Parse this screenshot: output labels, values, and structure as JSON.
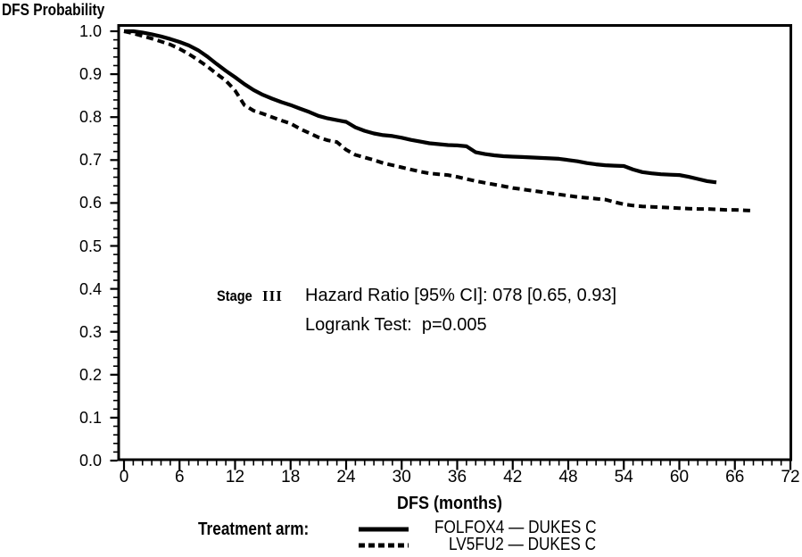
{
  "figure": {
    "background": "#ffffff",
    "ink_color": "#000000"
  },
  "chart_data": {
    "type": "line",
    "subtype": "kaplan-meier-survival",
    "ylabel": "DFS Probability",
    "xlabel": "DFS (months)",
    "xlim": [
      0,
      72
    ],
    "ylim": [
      0.0,
      1.0
    ],
    "grid": false,
    "x_tick_labels": [
      "0",
      "6",
      "12",
      "18",
      "24",
      "30",
      "36",
      "42",
      "48",
      "54",
      "60",
      "66",
      "72"
    ],
    "y_tick_labels": [
      "0.0",
      "0.1",
      "0.2",
      "0.3",
      "0.4",
      "0.5",
      "0.6",
      "0.7",
      "0.8",
      "0.9",
      "1.0"
    ],
    "x_minor_tick_step": 1,
    "y_minor_tick_step": 0.02,
    "legend_position": "bottom",
    "series": [
      {
        "name": "FOLFOX4 — DUKES C",
        "line_style": "solid",
        "points": [
          [
            0,
            1.0
          ],
          [
            1,
            1.0
          ],
          [
            2,
            0.997
          ],
          [
            3,
            0.993
          ],
          [
            4,
            0.988
          ],
          [
            5,
            0.982
          ],
          [
            6,
            0.975
          ],
          [
            7,
            0.967
          ],
          [
            8,
            0.956
          ],
          [
            9,
            0.941
          ],
          [
            10,
            0.924
          ],
          [
            11,
            0.908
          ],
          [
            12,
            0.893
          ],
          [
            13,
            0.877
          ],
          [
            14,
            0.863
          ],
          [
            15,
            0.852
          ],
          [
            16,
            0.843
          ],
          [
            17,
            0.835
          ],
          [
            18,
            0.828
          ],
          [
            19,
            0.82
          ],
          [
            20,
            0.812
          ],
          [
            21,
            0.803
          ],
          [
            22,
            0.797
          ],
          [
            23,
            0.793
          ],
          [
            24,
            0.789
          ],
          [
            25,
            0.776
          ],
          [
            26,
            0.768
          ],
          [
            27,
            0.762
          ],
          [
            28,
            0.758
          ],
          [
            29,
            0.756
          ],
          [
            30,
            0.752
          ],
          [
            31,
            0.747
          ],
          [
            32,
            0.743
          ],
          [
            33,
            0.739
          ],
          [
            34,
            0.737
          ],
          [
            35,
            0.735
          ],
          [
            36,
            0.734
          ],
          [
            37,
            0.732
          ],
          [
            38,
            0.718
          ],
          [
            39,
            0.714
          ],
          [
            40,
            0.711
          ],
          [
            41,
            0.709
          ],
          [
            42,
            0.708
          ],
          [
            43,
            0.707
          ],
          [
            44,
            0.706
          ],
          [
            45,
            0.705
          ],
          [
            46,
            0.704
          ],
          [
            47,
            0.703
          ],
          [
            48,
            0.7
          ],
          [
            49,
            0.697
          ],
          [
            50,
            0.693
          ],
          [
            51,
            0.69
          ],
          [
            52,
            0.688
          ],
          [
            53,
            0.687
          ],
          [
            54,
            0.686
          ],
          [
            55,
            0.678
          ],
          [
            56,
            0.672
          ],
          [
            57,
            0.669
          ],
          [
            58,
            0.667
          ],
          [
            59,
            0.666
          ],
          [
            60,
            0.665
          ],
          [
            61,
            0.661
          ],
          [
            62,
            0.656
          ],
          [
            63,
            0.651
          ],
          [
            64,
            0.648
          ]
        ]
      },
      {
        "name": "LV5FU2 — DUKES C",
        "line_style": "dashed",
        "points": [
          [
            0,
            1.0
          ],
          [
            1,
            0.995
          ],
          [
            2,
            0.989
          ],
          [
            3,
            0.983
          ],
          [
            4,
            0.976
          ],
          [
            5,
            0.969
          ],
          [
            6,
            0.959
          ],
          [
            7,
            0.947
          ],
          [
            8,
            0.933
          ],
          [
            9,
            0.918
          ],
          [
            10,
            0.901
          ],
          [
            11,
            0.885
          ],
          [
            12,
            0.862
          ],
          [
            13,
            0.828
          ],
          [
            14,
            0.815
          ],
          [
            15,
            0.808
          ],
          [
            16,
            0.8
          ],
          [
            17,
            0.792
          ],
          [
            18,
            0.785
          ],
          [
            19,
            0.773
          ],
          [
            20,
            0.763
          ],
          [
            21,
            0.753
          ],
          [
            22,
            0.746
          ],
          [
            23,
            0.742
          ],
          [
            24,
            0.724
          ],
          [
            25,
            0.712
          ],
          [
            26,
            0.706
          ],
          [
            27,
            0.7
          ],
          [
            28,
            0.693
          ],
          [
            29,
            0.688
          ],
          [
            30,
            0.683
          ],
          [
            31,
            0.678
          ],
          [
            32,
            0.673
          ],
          [
            33,
            0.669
          ],
          [
            34,
            0.667
          ],
          [
            35,
            0.665
          ],
          [
            36,
            0.661
          ],
          [
            37,
            0.656
          ],
          [
            38,
            0.651
          ],
          [
            39,
            0.647
          ],
          [
            40,
            0.643
          ],
          [
            41,
            0.639
          ],
          [
            42,
            0.635
          ],
          [
            43,
            0.632
          ],
          [
            44,
            0.629
          ],
          [
            45,
            0.626
          ],
          [
            46,
            0.623
          ],
          [
            47,
            0.62
          ],
          [
            48,
            0.617
          ],
          [
            49,
            0.614
          ],
          [
            50,
            0.612
          ],
          [
            51,
            0.61
          ],
          [
            52,
            0.608
          ],
          [
            53,
            0.602
          ],
          [
            54,
            0.597
          ],
          [
            55,
            0.594
          ],
          [
            56,
            0.592
          ],
          [
            57,
            0.591
          ],
          [
            58,
            0.59
          ],
          [
            59,
            0.589
          ],
          [
            60,
            0.588
          ],
          [
            61,
            0.587
          ],
          [
            62,
            0.586
          ],
          [
            63,
            0.586
          ],
          [
            64,
            0.585
          ],
          [
            65,
            0.584
          ],
          [
            66,
            0.584
          ],
          [
            67,
            0.583
          ],
          [
            68,
            0.582
          ]
        ]
      }
    ]
  },
  "annotation": {
    "stage_prefix": "Stage",
    "stage_numeral": "III",
    "hazard_ratio": "Hazard Ratio [95% CI]: 078 [0.65, 0.93]",
    "logrank": "Logrank Test:  p=0.005"
  },
  "legend": {
    "title": "Treatment arm:",
    "items": [
      {
        "label": "FOLFOX4 — DUKES C",
        "line_style": "solid"
      },
      {
        "label": "LV5FU2 — DUKES C",
        "line_style": "dashed"
      }
    ]
  }
}
